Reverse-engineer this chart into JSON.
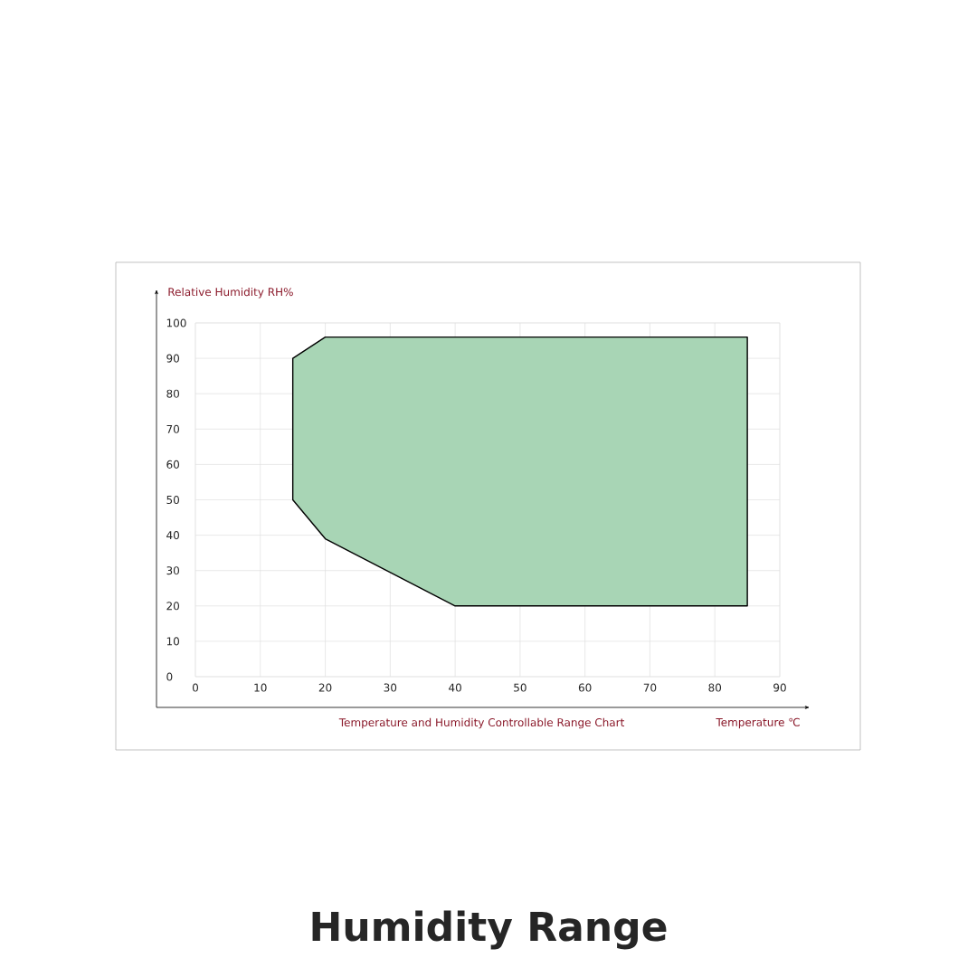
{
  "chart_data": {
    "type": "area",
    "title": "Humidity Range",
    "xlabel": "Temperature ℃",
    "ylabel": "Relative Humidity RH%",
    "annotations": [
      "Temperature and Humidity Controllable Range Chart"
    ],
    "series": [
      {
        "x": [
          15,
          20,
          85,
          85,
          40,
          20,
          15
        ],
        "values": [
          90,
          96,
          96,
          20,
          20,
          39,
          50
        ],
        "color": "#a8d5b5"
      }
    ],
    "xlim": [
      0,
      90
    ],
    "ylim": [
      0,
      100
    ],
    "xticks": [
      0,
      10,
      20,
      30,
      40,
      50,
      60,
      70,
      80,
      90
    ],
    "yticks": [
      0,
      10,
      20,
      30,
      40,
      50,
      60,
      70,
      80,
      90,
      100
    ],
    "grid": true
  }
}
